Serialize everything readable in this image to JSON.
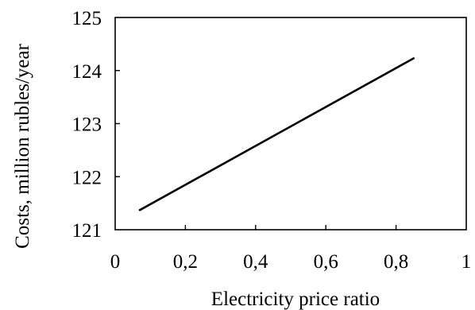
{
  "chart_data": {
    "type": "line",
    "title": "",
    "xlabel": "Electricity  price ratio",
    "ylabel": "Costs, million  rubles/year",
    "xlim": [
      0,
      1
    ],
    "ylim": [
      121,
      125
    ],
    "x_ticks": [
      0,
      0.2,
      0.4,
      0.6,
      0.8,
      1
    ],
    "x_tick_labels": [
      "0",
      "0,2",
      "0,4",
      "0,6",
      "0,8",
      "1"
    ],
    "y_ticks": [
      121,
      122,
      123,
      124,
      125
    ],
    "y_tick_labels": [
      "121",
      "122",
      "123",
      "124",
      "125"
    ],
    "grid": false,
    "legend": "none",
    "line_color": "#000000",
    "series": [
      {
        "x": [
          0.07,
          0.85
        ],
        "y": [
          121.37,
          124.23
        ]
      }
    ]
  }
}
